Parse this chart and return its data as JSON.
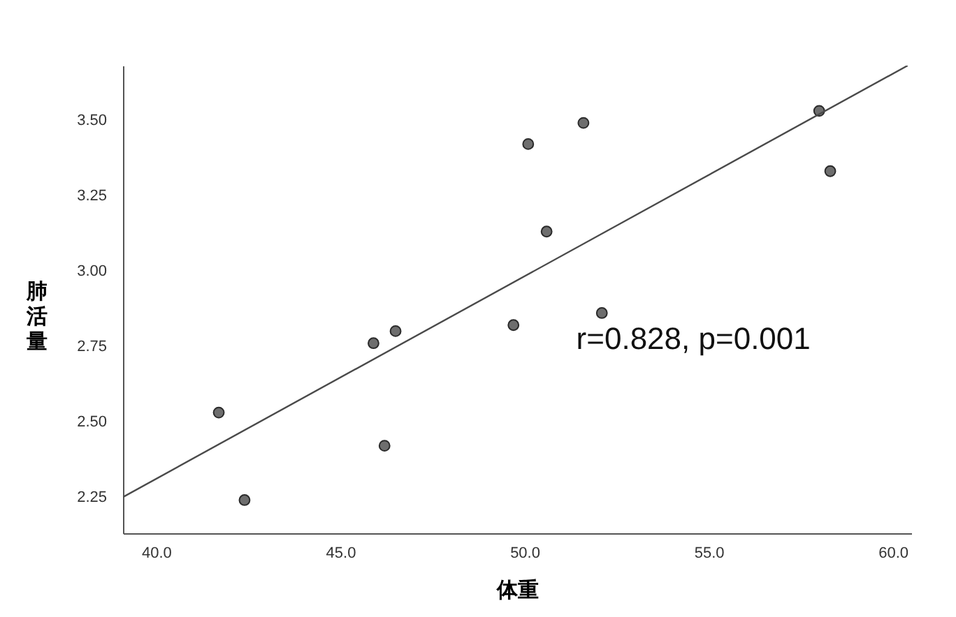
{
  "chart_data": {
    "type": "scatter",
    "xlabel": "体重",
    "ylabel": "肺活量",
    "xlim": [
      39.1,
      60.5
    ],
    "ylim": [
      2.13,
      3.68
    ],
    "xticks": [
      {
        "value": 40,
        "label": "40.0"
      },
      {
        "value": 45,
        "label": "45.0"
      },
      {
        "value": 50,
        "label": "50.0"
      },
      {
        "value": 55,
        "label": "55.0"
      },
      {
        "value": 60,
        "label": "60.0"
      }
    ],
    "yticks": [
      2.25,
      {
        "value": 2.5,
        "label": "2.50"
      },
      2.75,
      {
        "value": 3,
        "label": "3.00"
      },
      3.25,
      {
        "value": 3.5,
        "label": "3.50"
      }
    ],
    "grid": false,
    "series": [
      {
        "marker": "circle",
        "color": "#6e6e6e",
        "x": [
          41.7,
          42.4,
          45.9,
          46.5,
          46.2,
          50.1,
          51.6,
          50.6,
          49.7,
          52.1,
          58.0,
          58.3
        ],
        "values": [
          2.53,
          2.24,
          2.76,
          2.8,
          2.42,
          3.42,
          3.49,
          3.13,
          2.82,
          2.86,
          3.53,
          3.33
        ]
      },
      {
        "type": "line",
        "color": "#4a4a4a",
        "x": [
          39.1,
          60.4
        ],
        "values": [
          2.25,
          3.68
        ]
      }
    ],
    "annotations": [
      "r=0.828, p=0.001"
    ]
  }
}
